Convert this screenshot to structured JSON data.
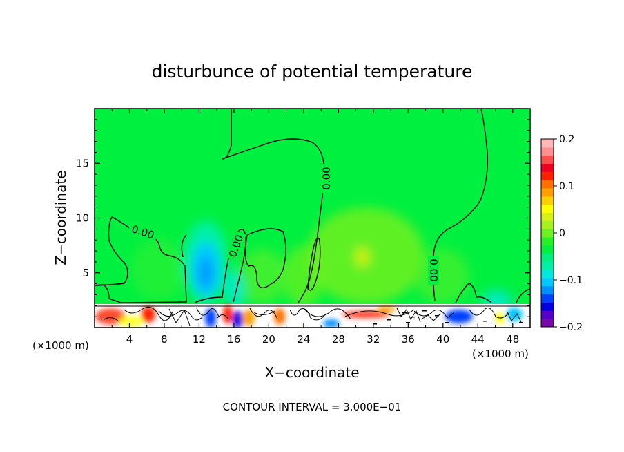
{
  "chart_data": {
    "type": "heatmap",
    "title": "disturbunce of potential temperature",
    "xlabel": "X−coordinate",
    "ylabel": "Z−coordinate",
    "x_unit_left": "(×1000 m)",
    "x_unit_right": "(×1000 m)",
    "xlim": [
      0,
      50
    ],
    "ylim": [
      0,
      20
    ],
    "x_ticks": [
      4,
      8,
      12,
      16,
      20,
      24,
      28,
      32,
      36,
      40,
      44,
      48
    ],
    "y_ticks": [
      5,
      10,
      15
    ],
    "contour_labels": [
      "0.00",
      "0.00",
      "0.00",
      "0.00"
    ],
    "footer": "CONTOUR INTERVAL = 3.000E−01",
    "colorbar": {
      "range": [
        -0.2,
        0.2
      ],
      "tick_values": [
        0.2,
        0.1,
        0,
        -0.1,
        -0.2
      ],
      "tick_labels": [
        "0.2",
        "0.1",
        "0",
        "−0.1",
        "−0.2"
      ],
      "colors": [
        "#7a0aa8",
        "#5500c8",
        "#0000e0",
        "#0040ff",
        "#0090ff",
        "#00c8ff",
        "#00e8e0",
        "#00f0a8",
        "#00f080",
        "#00f040",
        "#28f028",
        "#70f020",
        "#a8f020",
        "#d8f018",
        "#ffff00",
        "#ffd000",
        "#ffa000",
        "#ff7000",
        "#ff2000",
        "#f00020",
        "#ff5050",
        "#ff9090",
        "#ffb8b8"
      ]
    },
    "grid": false
  }
}
